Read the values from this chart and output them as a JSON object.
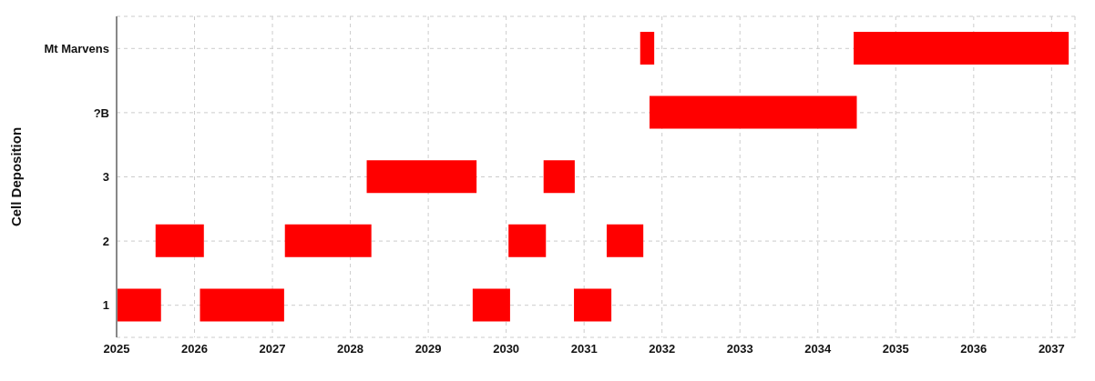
{
  "chart_data": {
    "type": "bar",
    "orientation": "horizontal",
    "ylabel": "Cell Deposition",
    "categories": [
      "Mt Marvens",
      "?B",
      "3",
      "2",
      "1"
    ],
    "series": [
      {
        "color": "#ff0000",
        "base": [
          2031.72,
          2031.84,
          2028.21,
          2025.5,
          2025.0
        ],
        "values": [
          0.18,
          2.66,
          1.41,
          0.62,
          0.57
        ]
      },
      {
        "color": "#ff0000",
        "base": [
          2034.46,
          null,
          2030.48,
          2027.16,
          2026.07
        ],
        "values": [
          2.76,
          null,
          0.4,
          1.11,
          1.08
        ]
      },
      {
        "color": "#ff0000",
        "base": [
          null,
          null,
          null,
          2030.03,
          2029.57
        ],
        "values": [
          null,
          null,
          null,
          0.48,
          0.48
        ]
      },
      {
        "color": "#ff0000",
        "base": [
          null,
          null,
          null,
          2031.29,
          2030.87
        ],
        "values": [
          null,
          null,
          null,
          0.47,
          0.48
        ]
      }
    ],
    "xlim": [
      2025,
      2037.3
    ],
    "xticks": [
      2025,
      2026,
      2027,
      2028,
      2029,
      2030,
      2031,
      2032,
      2033,
      2034,
      2035,
      2036,
      2037
    ],
    "grid": true
  }
}
